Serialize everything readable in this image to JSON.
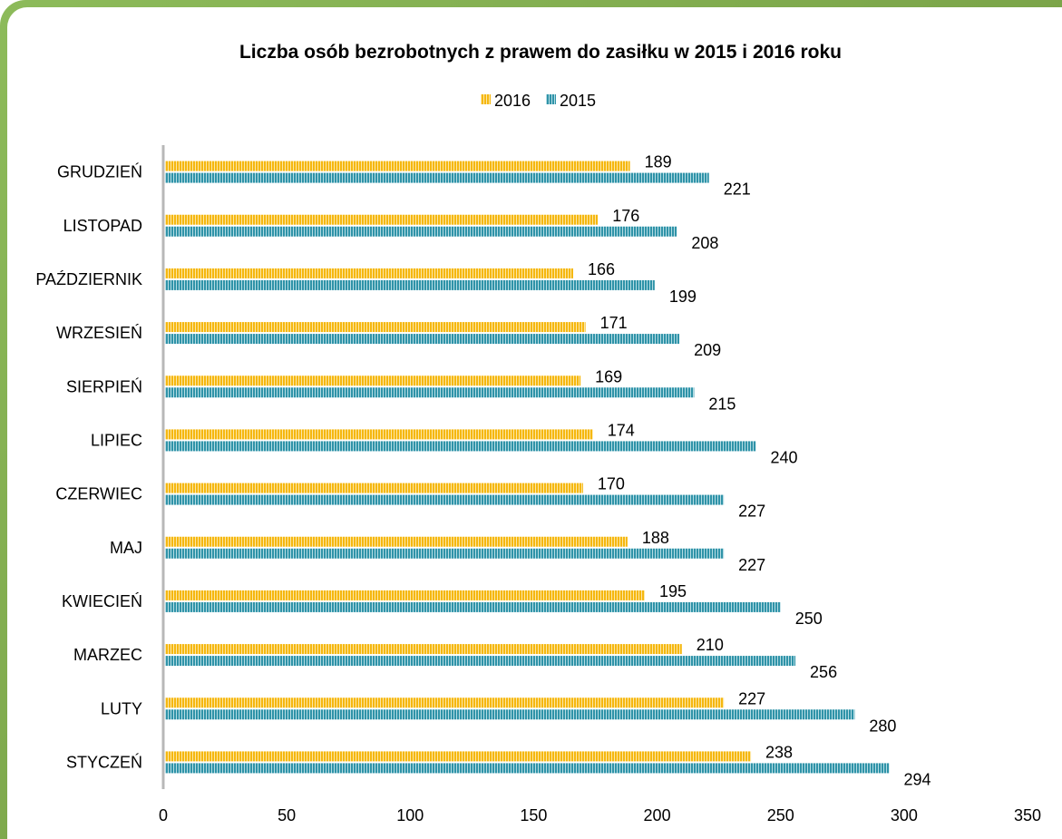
{
  "chart_data": {
    "type": "bar",
    "orientation": "horizontal",
    "title": "Liczba osób bezrobotnych z prawem do zasiłku  w 2015 i 2016 roku",
    "categories": [
      "STYCZEŃ",
      "LUTY",
      "MARZEC",
      "KWIECIEŃ",
      "MAJ",
      "CZERWIEC",
      "LIPIEC",
      "SIERPIEŃ",
      "WRZESIEŃ",
      "PAŹDZIERNIK",
      "LISTOPAD",
      "GRUDZIEŃ"
    ],
    "series": [
      {
        "name": "2016",
        "color": "#f5b70f",
        "values": [
          238,
          227,
          210,
          195,
          188,
          170,
          174,
          169,
          171,
          166,
          176,
          189
        ]
      },
      {
        "name": "2015",
        "color": "#2f93a8",
        "values": [
          294,
          280,
          256,
          250,
          227,
          227,
          240,
          215,
          209,
          199,
          208,
          221
        ]
      }
    ],
    "xlim": [
      0,
      350
    ],
    "xticks": [
      0,
      50,
      100,
      150,
      200,
      250,
      300,
      350
    ],
    "legend_position": "top",
    "grid": false,
    "frame_color": "#7aa348"
  }
}
